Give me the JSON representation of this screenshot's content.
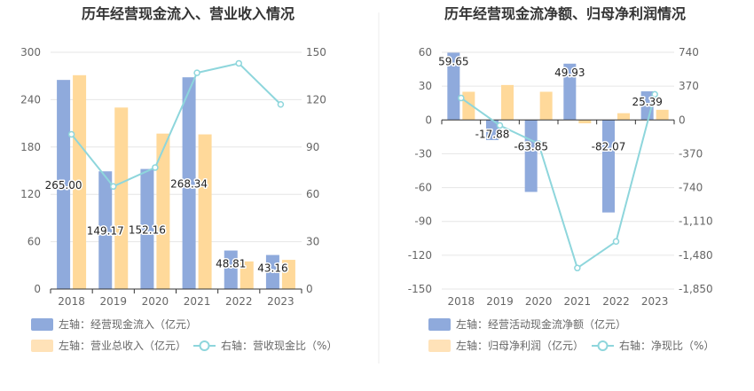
{
  "charts": [
    {
      "title": "历年经营现金流入、营业收入情况",
      "legend": {
        "bar1": "左轴：经营现金流入（亿元）",
        "bar2": "左轴：营业总收入（亿元）",
        "line": "右轴：营收现金比（%）"
      }
    },
    {
      "title": "历年经营现金流净额、归母净利润情况",
      "legend": {
        "bar1": "左轴：经营活动现金流净额（亿元）",
        "bar2": "左轴：归母净利润（亿元）",
        "line": "右轴：净现比（%）"
      }
    }
  ],
  "colors": {
    "bar1": "#8faadc",
    "bar2": "#ffd99a",
    "line": "#8ed6dc",
    "axis_text": "#666666",
    "title": "#333333",
    "grid": "#e6e6e6",
    "divider": "#eeeeee"
  },
  "chart_data": [
    {
      "type": "bar",
      "title": "历年经营现金流入、营业收入情况",
      "categories": [
        "2018",
        "2019",
        "2020",
        "2021",
        "2022",
        "2023"
      ],
      "series": [
        {
          "name": "左轴：经营现金流入（亿元）",
          "type": "bar",
          "axis": "left",
          "values": [
            265.0,
            149.17,
            152.16,
            268.34,
            48.81,
            43.16
          ],
          "labels": [
            "265.00",
            "149.17",
            "152.16",
            "268.34",
            "48.81",
            "43.16"
          ]
        },
        {
          "name": "左轴：营业总收入（亿元）",
          "type": "bar",
          "axis": "left",
          "values": [
            271,
            230,
            197,
            196,
            35,
            37
          ]
        },
        {
          "name": "右轴：营收现金比（%）",
          "type": "line",
          "axis": "right",
          "values": [
            98,
            65,
            77,
            137,
            143,
            117
          ]
        }
      ],
      "left_axis": {
        "min": 0,
        "max": 300,
        "ticks": [
          "0",
          "60",
          "120",
          "180",
          "240",
          "300"
        ]
      },
      "right_axis": {
        "min": 0,
        "max": 150,
        "ticks": [
          "0",
          "30",
          "60",
          "90",
          "120",
          "150"
        ]
      },
      "grid": true,
      "legend_position": "bottom"
    },
    {
      "type": "bar",
      "title": "历年经营现金流净额、归母净利润情况",
      "categories": [
        "2018",
        "2019",
        "2020",
        "2021",
        "2022",
        "2023"
      ],
      "series": [
        {
          "name": "左轴：经营活动现金流净额（亿元）",
          "type": "bar",
          "axis": "left",
          "values": [
            59.65,
            -17.88,
            -63.85,
            49.93,
            -82.07,
            25.39
          ],
          "labels": [
            "59.65",
            "-17.88",
            "-63.85",
            "49.93",
            "-82.07",
            "25.39"
          ]
        },
        {
          "name": "左轴：归母净利润（亿元）",
          "type": "bar",
          "axis": "left",
          "values": [
            25,
            31,
            25,
            -3,
            6,
            9
          ]
        },
        {
          "name": "右轴：净现比（%）",
          "type": "line",
          "axis": "right",
          "values": [
            240,
            -60,
            -260,
            -1620,
            -1330,
            280
          ]
        }
      ],
      "left_axis": {
        "min": -150,
        "max": 60,
        "ticks": [
          "-150",
          "-120",
          "-90",
          "-60",
          "-30",
          "0",
          "30",
          "60"
        ]
      },
      "right_axis": {
        "min": -1850,
        "max": 740,
        "ticks": [
          "-1,850",
          "-1,480",
          "-1,110",
          "-740",
          "-370",
          "0",
          "370",
          "740"
        ]
      },
      "grid": true,
      "legend_position": "bottom"
    }
  ]
}
